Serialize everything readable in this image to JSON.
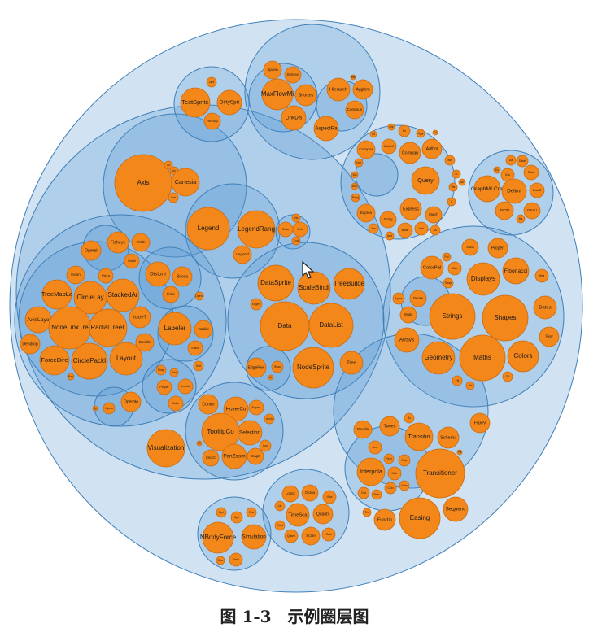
{
  "caption": {
    "number": "图 1-3",
    "title": "示例圈层图"
  },
  "colors": {
    "leaf": "#f4871a",
    "group": "#5b9bd5",
    "stroke": "#3f7fb8",
    "background": "#ffffff"
  },
  "labels": {
    "Axis": "Axis",
    "Ax1": "Ax",
    "Ax2": "Ax",
    "Cartesia": "Cartesia",
    "Axis2": "Axis",
    "Legend": "Legend",
    "LegendRang": "LegendRang",
    "Legend2": "Legend",
    "Vis": "Vis",
    "Data": "Data",
    "Sele": "Sele",
    "Tool": "Tool",
    "Operat": "Operat",
    "Fisheye": "Fisheye",
    "Visibi": "Visibi",
    "Graph": "Graph",
    "Inden": "Inden",
    "PieLa": "PieLa",
    "TreeMapLa": "TreeMapLa",
    "CircleLay": "CircleLay",
    "StackedAr": "StackedAr",
    "AxisLayo": "AxisLayo",
    "IcicleT": "IcicleT",
    "NodeLinkTre": "NodeLinkTre",
    "RadialTreeL": "RadialTreeL",
    "Dendrog": "Dendrog",
    "Bundle": "Bundle",
    "ForceDire": "ForceDire",
    "CirclePackI": "CirclePackI",
    "Layout": "Layout",
    "Ran": "Ran",
    "Distorti": "Distorti",
    "Bifoca": "Bifoca",
    "Fishe": "Fishe",
    "Opera1": "Opera",
    "Labeler": "Labeler",
    "Radial": "Radial",
    "Stack": "Stack",
    "Sort1": "Sort",
    "Shap1": "Shap",
    "Size1": "Size",
    "Proper": "Proper",
    "Encode": "Encode",
    "Color": "Color",
    "Op": "Op",
    "Opera2": "Opera",
    "Operato": "Operato",
    "DataSprite": "DataSprite",
    "ScaleBindi": "ScaleBindi",
    "TreeBuilde": "TreeBuilde",
    "EdgeS": "EdgeS",
    "Data2": "Data",
    "DataList": "DataList",
    "EdgeRen": "EdgeRen",
    "Shap2": "Shap",
    "Ar": "Ar",
    "NodeSprite": "NodeSprite",
    "Tree": "Tree",
    "Contro": "Contro",
    "HoverCo": "HoverCo",
    "Expan": "Expan",
    "Anch": "Anch",
    "TooltipCo": "TooltipCo",
    "Selection": "Selection",
    "IC": "IC",
    "Con": "Con",
    "ClickC": "ClickC",
    "PanZoom": "PanZoom",
    "DragC": "DragC",
    "Visualization": "Visualization",
    "Line": "Line",
    "TextSprite": "TextSprite",
    "DirtySpri": "DirtySpri",
    "RectSp": "RectSp",
    "Spann": "Spann",
    "Betwee": "Betwee",
    "MaxFlowMi": "MaxFlowMi",
    "Shortes": "Shortes",
    "LinkDis": "LinkDis",
    "Ma": "Ma",
    "Hierarch": "Hierarch",
    "Agglom": "Agglom",
    "Commun": "Commun",
    "AspectRa": "AspectRa",
    "Dis": "Dis",
    "Fn": "Fn",
    "Or": "Or",
    "Aggr": "Aggr",
    "Co": "Co",
    "DateUt": "DateUt",
    "Compos": "Compos",
    "Compan": "Compan",
    "Arithm": "Arithm",
    "Not": "Not",
    "IsA": "IsA",
    "Query": "Query",
    "Lt": "Lt",
    "Ma2": "Ma",
    "Mi": "Mi",
    "Ave": "Ave",
    "Var": "Var",
    "Rang": "Rang",
    "If": "If",
    "Expres": "Expres",
    "Express": "Express",
    "Match": "Match",
    "String": "String",
    "Xor": "Xor",
    "Binar": "Binar",
    "Vari": "Vari",
    "Su": "Su",
    "And": "And",
    "Da": "Da",
    "DataI": "DataI",
    "Co2": "Co",
    "IDa": "IDa",
    "Data3": "Data",
    "GraphMLCon": "GraphMLCon",
    "Delimi": "Delimi",
    "DataS": "DataS",
    "JSON": "JSON",
    "DataU": "DataU",
    "Da2": "Da",
    "Stats": "Stats",
    "Propert": "Propert",
    "Pal": "Pal",
    "ColorPal": "ColorPal",
    "Size2": "Size",
    "Fibonacci": "Fibonacci",
    "Hea": "Hea",
    "Shap3": "Shap",
    "Displays": "Displays",
    "Spars": "Spars",
    "Dense": "Dense",
    "IMatr": "IMatr",
    "Strings": "Strings",
    "Shapes": "Shapes",
    "Dates": "Dates",
    "Arrays": "Arrays",
    "Sort2": "Sort",
    "Geometry": "Geometry",
    "Maths": "Maths",
    "Colors": "Colors",
    "Filt": "Filt",
    "Orl": "Orl",
    "Ma3": "Ma",
    "FlareV": "FlareV",
    "Sc": "Sc",
    "Paralle": "Paralle",
    "Tween": "Tween",
    "Transitio": "Transitio",
    "Schedul": "Schedul",
    "Pa": "Pa",
    "Arra": "Arra",
    "Rect": "Rect",
    "Obje": "Obje",
    "Interpola": "Interpola",
    "Matr": "Matr",
    "Transitioner": "Transitioner",
    "Dat": "Dat",
    "Poin": "Poin",
    "Colo": "Colo",
    "Num": "Num",
    "Tra": "Tra",
    "Functio": "Functio",
    "Easing": "Easing",
    "Sequenc": "Sequenc",
    "LogSc": "LogSc",
    "Ordina": "Ordina",
    "ISca": "ISca",
    "Lin": "Lin",
    "TimeSca": "TimeSca",
    "Quantit": "Quantit",
    "Root": "Root",
    "Quanti": "Quanti",
    "Scale": "Scale",
    "Scal": "Scal",
    "Spri1": "Spri",
    "Spri2": "Spri",
    "Gra": "Gra",
    "NBodyForce": "NBodyForce",
    "Simulation": "Simulation",
    "Dra": "Dra",
    "Parti": "Parti"
  }
}
